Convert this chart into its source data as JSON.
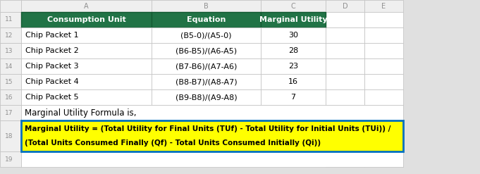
{
  "row_numbers": [
    11,
    12,
    13,
    14,
    15,
    16,
    17,
    18,
    19
  ],
  "col_letters": [
    "",
    "A",
    "B",
    "C",
    "D",
    "E"
  ],
  "header_row": [
    "Consumption Unit",
    "Equation",
    "Marginal Utility"
  ],
  "table_rows": [
    [
      "Chip Packet 1",
      "(B5-0)/(A5-0)",
      "30"
    ],
    [
      "Chip Packet 2",
      "(B6-B5)/(A6-A5)",
      "28"
    ],
    [
      "Chip Packet 3",
      "(B7-B6)/(A7-A6)",
      "23"
    ],
    [
      "Chip Packet 4",
      "(B8-B7)/(A8-A7)",
      "16"
    ],
    [
      "Chip Packet 5",
      "(B9-B8)/(A9-A8)",
      "7"
    ]
  ],
  "formula_label": "Marginal Utility Formula is,",
  "formula_text_line1": "Marginal Utility = (Total Utility for Final Units (TUf) - Total Utility for Initial Units (TUi)) /",
  "formula_text_line2": "(Total Units Consumed Finally (Qf) - Total Units Consumed Initially (Qi))",
  "header_bg": "#217346",
  "header_fg": "#FFFFFF",
  "formula_bg": "#FFFF00",
  "formula_border": "#0070C0",
  "grid_color": "#C0C0C0",
  "spreadsheet_bg": "#FFFFFF",
  "col_header_bg": "#EFEFEF",
  "col_header_fg": "#909090",
  "row_num_fg": "#909090",
  "figsize": [
    6.81,
    2.47
  ],
  "dpi": 100
}
